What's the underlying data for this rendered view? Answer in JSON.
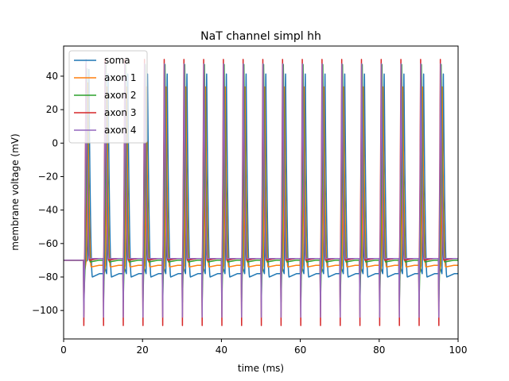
{
  "chart_data": {
    "type": "line",
    "title": "NaT channel simpl hh",
    "xlabel": "time (ms)",
    "ylabel": "membrane voltage (mV)",
    "xlim": [
      0,
      100
    ],
    "ylim": [
      -117,
      58
    ],
    "xticks": [
      0,
      20,
      40,
      60,
      80,
      100
    ],
    "yticks": [
      -100,
      -80,
      -60,
      -40,
      -20,
      0,
      20,
      40
    ],
    "legend_position": "top-left",
    "grid": false,
    "spike_period_ms": 5.0,
    "first_stimulus_ms": 5.0,
    "resting_potential_mv": -70,
    "series": [
      {
        "name": "soma",
        "color": "#1f77b4",
        "peak": 44,
        "trough": -80,
        "plateau": -78,
        "delay": 0.9,
        "dip": -72
      },
      {
        "name": "axon 1",
        "color": "#ff7f0e",
        "peak": 36,
        "trough": -74,
        "plateau": -73,
        "delay": 0.6,
        "dip": -80
      },
      {
        "name": "axon 2",
        "color": "#2ca02c",
        "peak": 47,
        "trough": -71,
        "plateau": -70,
        "delay": 0.35,
        "dip": -95
      },
      {
        "name": "axon 3",
        "color": "#d62728",
        "peak": 50,
        "trough": -70,
        "plateau": -69,
        "delay": 0.15,
        "dip": -109
      },
      {
        "name": "axon 4",
        "color": "#9467bd",
        "peak": 50,
        "trough": -69,
        "plateau": -69,
        "delay": 0.2,
        "dip": -104
      }
    ]
  }
}
